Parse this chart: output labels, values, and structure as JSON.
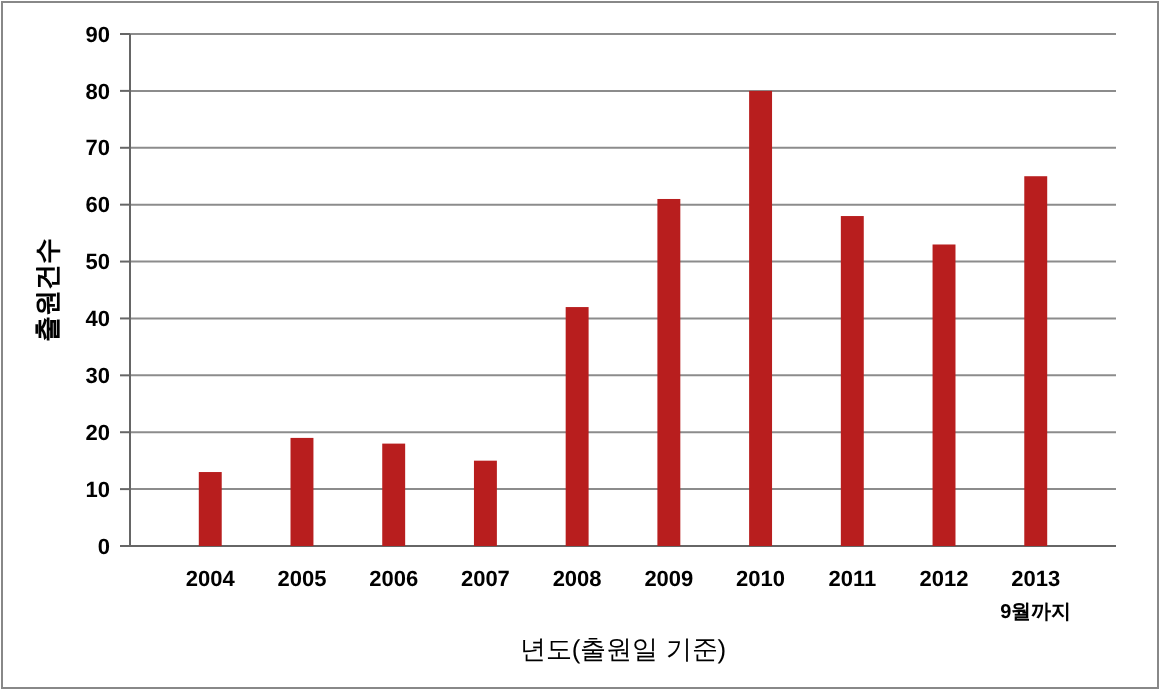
{
  "chart_data": {
    "type": "bar",
    "xlabel": "년도(출원일 기준)",
    "ylabel": "출원건수",
    "categories": [
      "2004",
      "2005",
      "2006",
      "2007",
      "2008",
      "2009",
      "2010",
      "2011",
      "2012",
      "2013"
    ],
    "values": [
      13,
      19,
      18,
      15,
      42,
      61,
      80,
      58,
      53,
      65
    ],
    "color": "#b81e1e",
    "ylim": [
      0,
      90
    ],
    "yticks": [
      0,
      10,
      20,
      30,
      40,
      50,
      60,
      70,
      80,
      90
    ],
    "grid": "y",
    "annotations": [
      "9월까지"
    ]
  }
}
